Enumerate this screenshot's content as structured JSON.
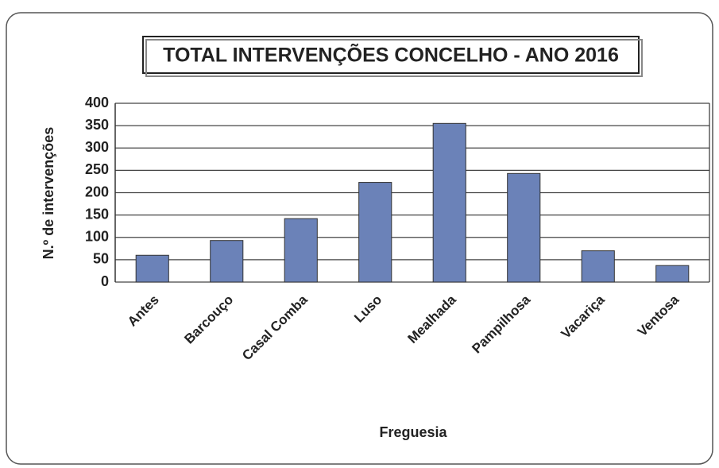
{
  "chart_data": {
    "type": "bar",
    "title": "TOTAL INTERVENÇÕES CONCELHO - ANO 2016",
    "x_label": "Freguesia",
    "y_label": "N.º de intervenções",
    "categories": [
      "Antes",
      "Barcouço",
      "Casal Comba",
      "Luso",
      "Mealhada",
      "Pampilhosa",
      "Vacariça",
      "Ventosa"
    ],
    "values": [
      60,
      93,
      142,
      223,
      355,
      243,
      70,
      37
    ],
    "color": "#6b82b8",
    "ylim": [
      0,
      400
    ],
    "yticks": [
      0,
      50,
      100,
      150,
      200,
      250,
      300,
      350,
      400
    ],
    "grid": true
  }
}
